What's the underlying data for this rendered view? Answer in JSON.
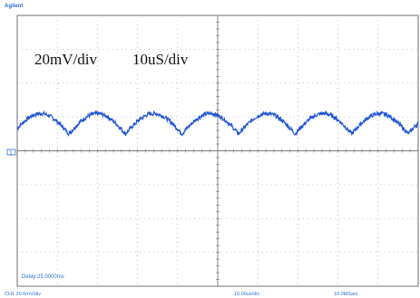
{
  "app": {
    "brand": "Agilent"
  },
  "overlay": {
    "volts_per_div": "20mV/div",
    "time_per_div": "10uS/div"
  },
  "status": {
    "delay": "Delay:25.0000ms",
    "channel_scale": "CH1 20.0mV/div",
    "time_scale": "10.00us/div",
    "sample_rate": "10.0MSa/s"
  },
  "channel": {
    "marker": "1",
    "color": "#1f55d2"
  },
  "chart_data": {
    "type": "line",
    "title": "",
    "xlabel": "",
    "ylabel": "",
    "xlim": [
      0,
      100
    ],
    "ylim": [
      -80,
      80
    ],
    "x_units": "us",
    "y_units": "mV",
    "grid": true,
    "ripple": {
      "period_us": 14.1,
      "peak_mV": 10,
      "trough_mV": -2,
      "dc_offset_mV": 12
    }
  }
}
